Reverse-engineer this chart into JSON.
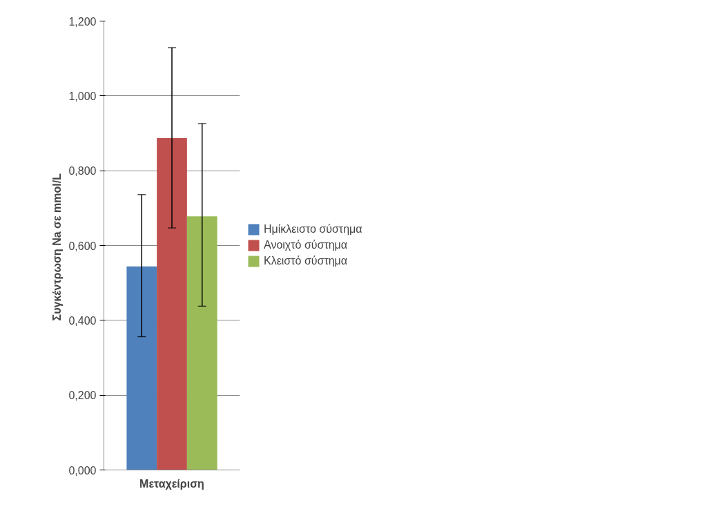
{
  "chart_data": {
    "type": "bar",
    "xlabel": "Μεταχείριση",
    "ylabel": "Συγκέντρωση  Na σε mmol/L",
    "categories": [
      null
    ],
    "series": [
      {
        "name": "Ημίκλειστο σύστημα",
        "color": "#4f81bd",
        "values": [
          0.544
        ],
        "errors": [
          [
            0.356,
            0.736
          ]
        ]
      },
      {
        "name": "Ανοιχτό σύστημα",
        "color": "#c0504d",
        "values": [
          0.887
        ],
        "errors": [
          [
            0.647,
            1.129
          ]
        ]
      },
      {
        "name": "Κλειστό σύστημα",
        "color": "#9bbb59",
        "values": [
          0.678
        ],
        "errors": [
          [
            0.438,
            0.926
          ]
        ]
      }
    ],
    "ylim": [
      0,
      1.2
    ],
    "yticks": [
      {
        "value": 0,
        "label": "0,000"
      },
      {
        "value": 0.2,
        "label": "0,200"
      },
      {
        "value": 0.4,
        "label": "0,400"
      },
      {
        "value": 0.6,
        "label": "0,600"
      },
      {
        "value": 0.8,
        "label": "0,800"
      },
      {
        "value": 1.0,
        "label": "1,000"
      },
      {
        "value": 1.2,
        "label": "1,200"
      }
    ],
    "grid": "y",
    "legend": "right"
  }
}
